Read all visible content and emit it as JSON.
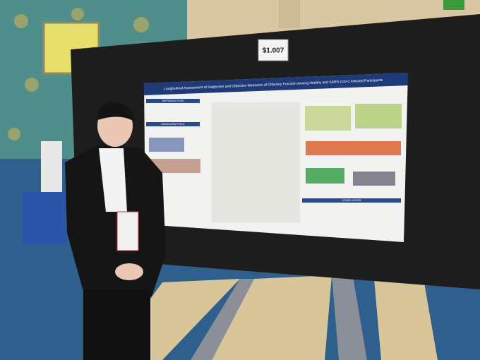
{
  "sign": {
    "label": "$1.007"
  },
  "poster": {
    "title": "Longitudinal Assessment of Subjective and Objective Measures of Olfactory Function Among Healthy and SARS-CoV-2 Infected Participants",
    "sections": [
      "INTRODUCTION",
      "DEMOGRAPHICS",
      "CONCLUSION"
    ]
  }
}
